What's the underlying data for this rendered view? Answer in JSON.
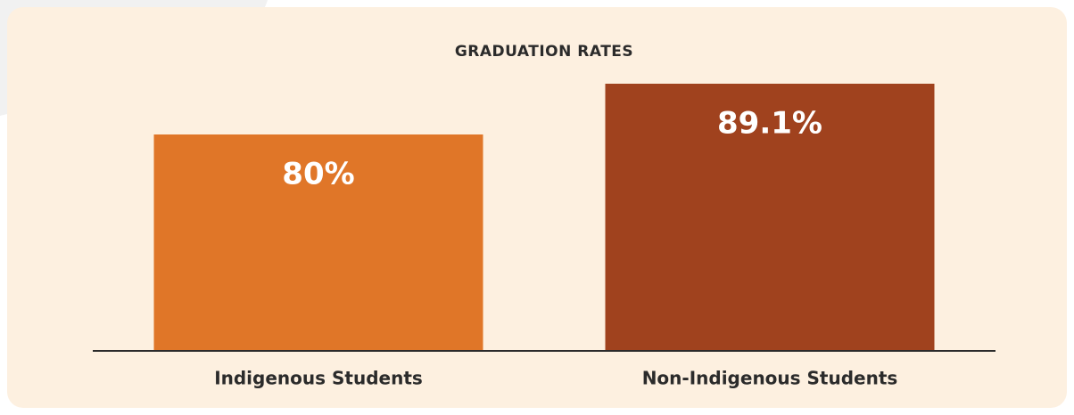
{
  "chart_data": {
    "type": "bar",
    "title": "GRADUATION RATES",
    "categories": [
      "Indigenous Students",
      "Non-Indigenous Students"
    ],
    "values": [
      80,
      89.1
    ],
    "value_labels": [
      "80%",
      "89.1%"
    ],
    "colors": [
      "#e07628",
      "#a0421e"
    ],
    "ylim": [
      41.2,
      89.1
    ]
  }
}
